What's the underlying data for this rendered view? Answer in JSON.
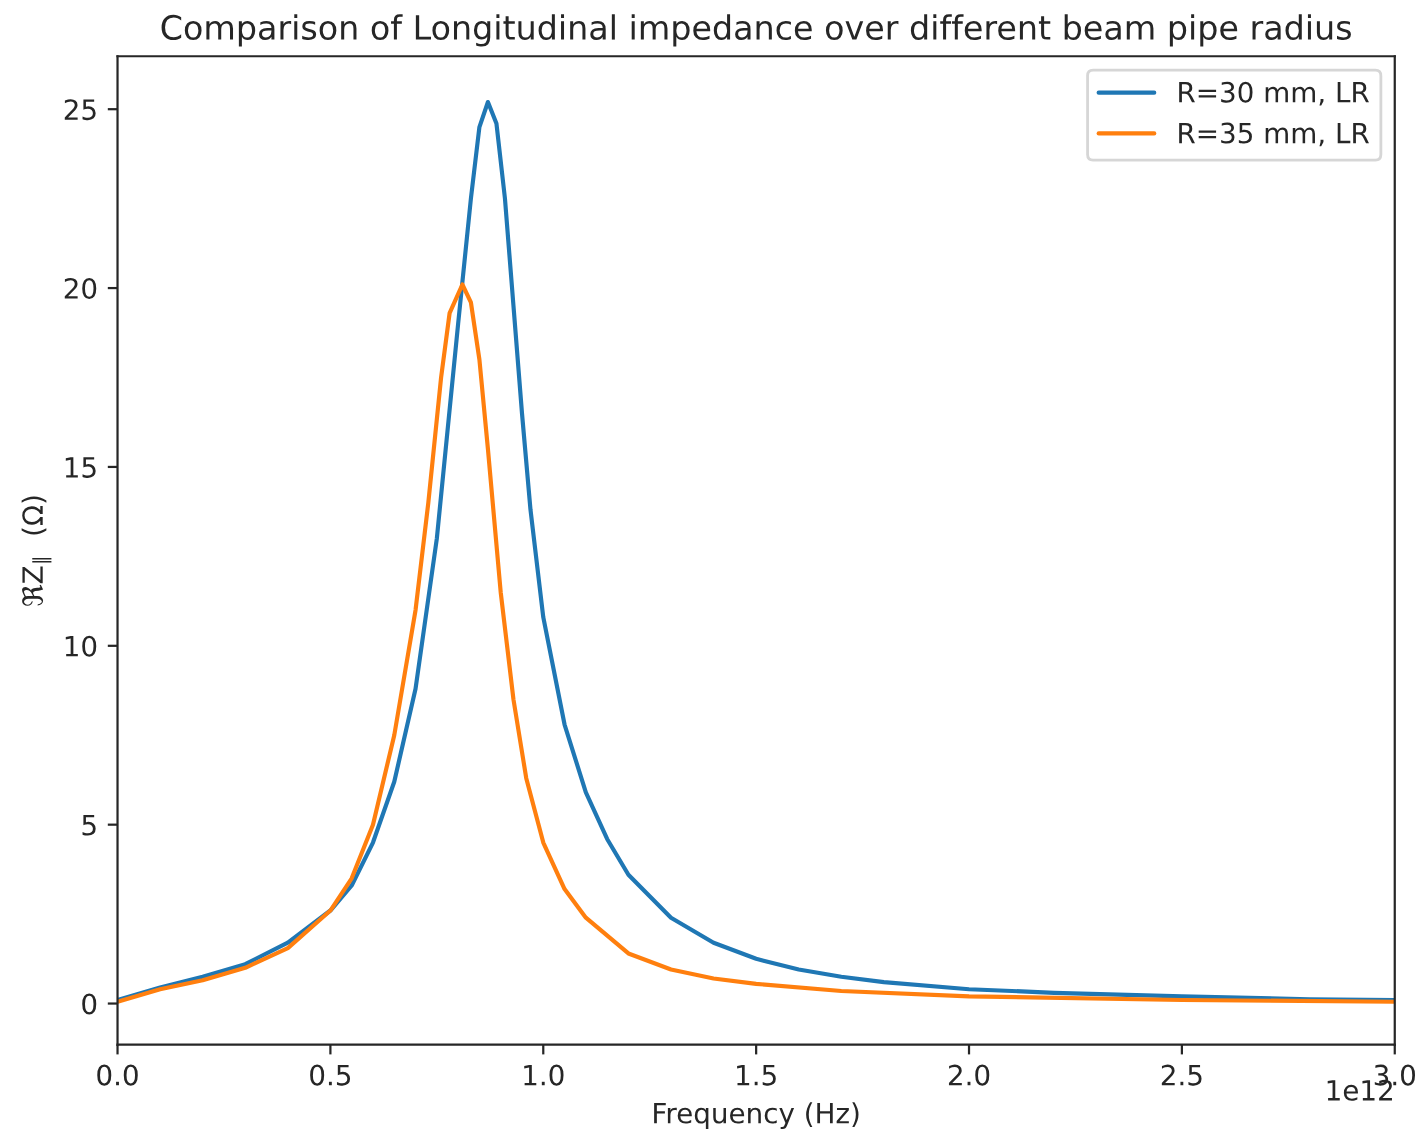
{
  "chart_data": {
    "type": "line",
    "title": "Comparison of Longitudinal impedance over different beam pipe radius",
    "xlabel": "Frequency (Hz)",
    "ylabel": "ℜZ$_{∥}$  (Ω)",
    "annotations": [
      "1e12"
    ],
    "xlim": [
      0,
      3.0
    ],
    "xticks": [
      {
        "value": 0,
        "label": "0.0"
      },
      0.5,
      {
        "value": 1,
        "label": "1.0"
      },
      1.5,
      {
        "value": 2,
        "label": "2.0"
      },
      2.5,
      {
        "value": 3,
        "label": "3.0"
      }
    ],
    "ylim": [
      -1.15,
      26.48
    ],
    "yticks": [
      0,
      5,
      10,
      15,
      20,
      25
    ],
    "legend": "top right",
    "grid": false,
    "series": [
      {
        "name": "R=30 mm, LR",
        "color": "#1f77b4",
        "x": [
          0,
          0.1,
          0.2,
          0.3,
          0.4,
          0.5,
          0.55,
          0.6,
          0.65,
          0.7,
          0.75,
          0.8,
          0.83,
          0.85,
          0.87,
          0.89,
          0.91,
          0.93,
          0.95,
          0.97,
          1.0,
          1.05,
          1.1,
          1.15,
          1.2,
          1.3,
          1.4,
          1.5,
          1.6,
          1.7,
          1.8,
          2.0,
          2.2,
          2.5,
          2.8,
          3.0
        ],
        "values": [
          0.1,
          0.45,
          0.75,
          1.1,
          1.7,
          2.6,
          3.3,
          4.5,
          6.2,
          8.8,
          13,
          19,
          22.5,
          24.5,
          25.2,
          24.6,
          22.5,
          19.5,
          16.5,
          13.8,
          10.8,
          7.8,
          5.9,
          4.6,
          3.6,
          2.4,
          1.7,
          1.25,
          0.95,
          0.75,
          0.6,
          0.4,
          0.3,
          0.2,
          0.12,
          0.1
        ]
      },
      {
        "name": "R=35 mm, LR",
        "color": "#ff7f0e",
        "x": [
          0,
          0.1,
          0.2,
          0.3,
          0.4,
          0.5,
          0.55,
          0.6,
          0.65,
          0.7,
          0.73,
          0.76,
          0.78,
          0.81,
          0.83,
          0.85,
          0.87,
          0.9,
          0.93,
          0.96,
          1.0,
          1.05,
          1.1,
          1.2,
          1.3,
          1.4,
          1.5,
          1.7,
          2.0,
          2.5,
          3.0
        ],
        "values": [
          0.05,
          0.4,
          0.65,
          1.0,
          1.55,
          2.6,
          3.5,
          5.0,
          7.5,
          11,
          14,
          17.5,
          19.3,
          20.1,
          19.6,
          18,
          15.5,
          11.5,
          8.5,
          6.3,
          4.5,
          3.2,
          2.4,
          1.4,
          0.95,
          0.7,
          0.55,
          0.35,
          0.2,
          0.1,
          0.05
        ]
      }
    ]
  }
}
